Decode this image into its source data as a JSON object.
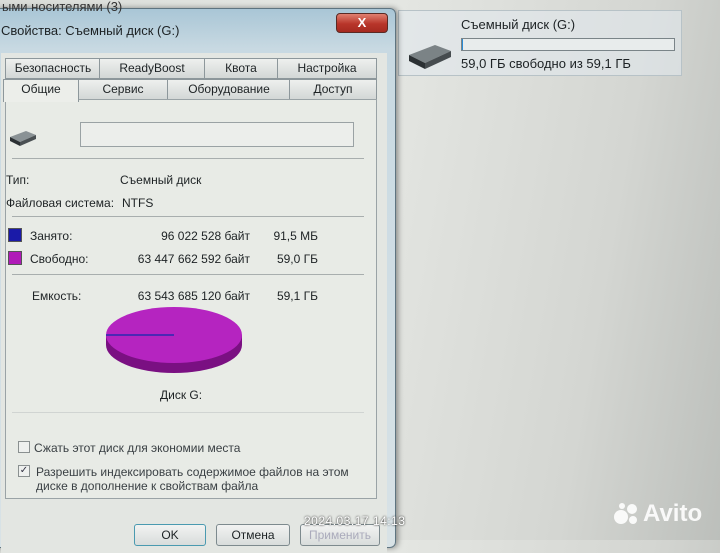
{
  "background": {
    "window_title_fragment": "ыми носителями (3)"
  },
  "drive_tile": {
    "name": "Съемный диск (G:)",
    "free_text": "59,0 ГБ свободно из 59,1 ГБ",
    "used_fraction": 0.0015,
    "icon": "removable-drive-icon"
  },
  "dialog": {
    "title": "Свойства: Съемный диск (G:)",
    "close_label": "X",
    "tabs_row1": [
      "Безопасность",
      "ReadyBoost",
      "Квота",
      "Настройка"
    ],
    "tabs_row2": [
      "Общие",
      "Сервис",
      "Оборудование",
      "Доступ"
    ],
    "active_tab": "Общие",
    "label_value": "",
    "type_label": "Тип:",
    "type_value": "Съемный диск",
    "fs_label": "Файловая система:",
    "fs_value": "NTFS",
    "used": {
      "label": "Занято:",
      "bytes": "96 022 528 байт",
      "size": "91,5 МБ",
      "color": "#1a1aa8"
    },
    "free": {
      "label": "Свободно:",
      "bytes": "63 447 662 592 байт",
      "size": "59,0 ГБ",
      "color": "#b01ab8"
    },
    "capacity": {
      "label": "Емкость:",
      "bytes": "63 543 685 120 байт",
      "size": "59,1 ГБ"
    },
    "disk_caption": "Диск G:",
    "compress": {
      "label": "Сжать этот диск для экономии места",
      "checked": false
    },
    "index": {
      "label_line1": "Разрешить индексировать содержимое файлов на этом",
      "label_line2": "диске в дополнение к свойствам файла",
      "checked": true,
      "mark": "✓"
    },
    "buttons": {
      "ok": "OK",
      "cancel": "Отмена",
      "apply": "Применить"
    }
  },
  "photo_overlay": {
    "timestamp": "2024.03.17  14:13",
    "watermark": "Avito"
  }
}
